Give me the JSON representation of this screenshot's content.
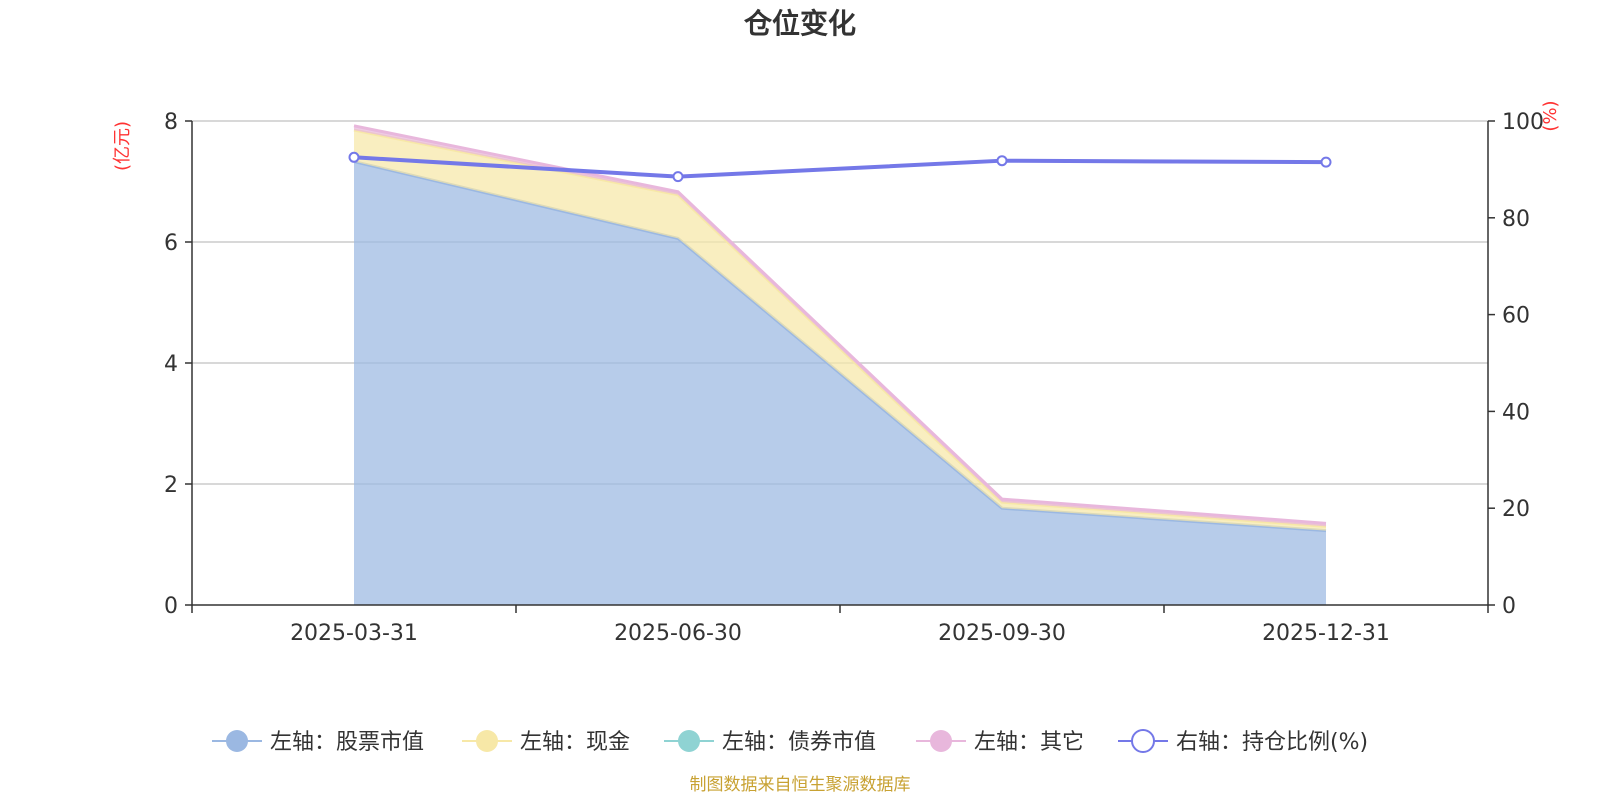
{
  "title": "仓位变化",
  "source_note": "制图数据来自恒生聚源数据库",
  "chart_data": {
    "type": "area",
    "categories": [
      "2025-03-31",
      "2025-06-30",
      "2025-09-30",
      "2025-12-31"
    ],
    "left_axis": {
      "unit": "(亿元)",
      "ylim": [
        0,
        8
      ],
      "ticks": [
        0,
        2,
        4,
        6,
        8
      ]
    },
    "right_axis": {
      "unit": "(%)",
      "ylim": [
        0,
        100
      ],
      "ticks": [
        0,
        20,
        40,
        60,
        80,
        100
      ]
    },
    "series": [
      {
        "name": "左轴：股票市值",
        "axis": "left",
        "kind": "stacked-area",
        "color": "#9bb8e2",
        "values": [
          7.33,
          6.06,
          1.6,
          1.23
        ]
      },
      {
        "name": "左轴：现金",
        "axis": "left",
        "kind": "stacked-area",
        "color": "#f7e8a7",
        "values": [
          0.52,
          0.72,
          0.1,
          0.07
        ]
      },
      {
        "name": "左轴：债券市值",
        "axis": "left",
        "kind": "stacked-area",
        "color": "#8fd3d3",
        "values": [
          0,
          0,
          0,
          0
        ]
      },
      {
        "name": "左轴：其它",
        "axis": "left",
        "kind": "stacked-area",
        "color": "#e8b7dc",
        "values": [
          0.07,
          0.05,
          0.05,
          0.05
        ]
      },
      {
        "name": "右轴：持仓比例(%)",
        "axis": "right",
        "kind": "line",
        "color": "#7478e8",
        "values": [
          92.5,
          88.5,
          91.8,
          91.5
        ]
      }
    ],
    "grid": true,
    "legend_position": "bottom"
  }
}
